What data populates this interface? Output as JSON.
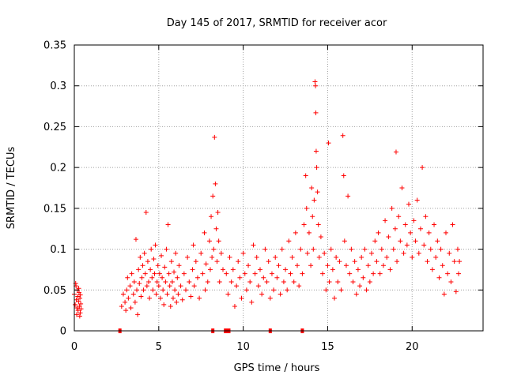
{
  "chart_data": {
    "type": "scatter",
    "title": "Day 145 of 2017, SRMTID for receiver acor",
    "xlabel": "GPS time / hours",
    "ylabel": "SRMTID / TECUs",
    "xlim": [
      0,
      24.2
    ],
    "ylim": [
      0,
      0.35
    ],
    "xticks": [
      0,
      5,
      10,
      15,
      20
    ],
    "xtick_labels": [
      "0",
      "5",
      "10",
      "15",
      "20"
    ],
    "yticks": [
      0,
      0.05,
      0.1,
      0.15,
      0.2,
      0.25,
      0.3,
      0.35
    ],
    "ytick_labels": [
      "0",
      "0.05",
      "0.1",
      "0.15",
      "0.2",
      "0.25",
      "0.3",
      "0.35"
    ],
    "grid": true,
    "marker": "+",
    "color": "#ff0000",
    "series": [
      {
        "name": "SRMTID",
        "points": [
          [
            0.0,
            0.045
          ],
          [
            0.05,
            0.032
          ],
          [
            0.1,
            0.055
          ],
          [
            0.12,
            0.038
          ],
          [
            0.15,
            0.028
          ],
          [
            0.18,
            0.05
          ],
          [
            0.2,
            0.042
          ],
          [
            0.22,
            0.025
          ],
          [
            0.25,
            0.036
          ],
          [
            0.28,
            0.047
          ],
          [
            0.3,
            0.03
          ],
          [
            0.33,
            0.04
          ],
          [
            0.35,
            0.022
          ],
          [
            0.38,
            0.033
          ],
          [
            0.4,
            0.027
          ],
          [
            0.08,
            0.058
          ],
          [
            0.14,
            0.02
          ],
          [
            0.26,
            0.052
          ],
          [
            0.32,
            0.018
          ],
          [
            0.36,
            0.044
          ],
          [
            2.7,
            0.0
          ],
          [
            2.8,
            0.03
          ],
          [
            2.9,
            0.045
          ],
          [
            3.0,
            0.035
          ],
          [
            3.05,
            0.025
          ],
          [
            3.1,
            0.05
          ],
          [
            3.15,
            0.065
          ],
          [
            3.2,
            0.04
          ],
          [
            3.3,
            0.055
          ],
          [
            3.35,
            0.028
          ],
          [
            3.4,
            0.07
          ],
          [
            3.5,
            0.045
          ],
          [
            3.55,
            0.06
          ],
          [
            3.6,
            0.035
          ],
          [
            3.65,
            0.112
          ],
          [
            3.7,
            0.05
          ],
          [
            3.75,
            0.02
          ],
          [
            3.8,
            0.075
          ],
          [
            3.85,
            0.058
          ],
          [
            3.9,
            0.09
          ],
          [
            3.95,
            0.042
          ],
          [
            4.0,
            0.065
          ],
          [
            4.05,
            0.08
          ],
          [
            4.1,
            0.05
          ],
          [
            4.15,
            0.095
          ],
          [
            4.2,
            0.07
          ],
          [
            4.25,
            0.145
          ],
          [
            4.3,
            0.055
          ],
          [
            4.35,
            0.085
          ],
          [
            4.4,
            0.06
          ],
          [
            4.45,
            0.04
          ],
          [
            4.5,
            0.075
          ],
          [
            4.55,
            0.1
          ],
          [
            4.6,
            0.065
          ],
          [
            4.65,
            0.05
          ],
          [
            4.7,
            0.088
          ],
          [
            4.75,
            0.07
          ],
          [
            4.8,
            0.105
          ],
          [
            4.85,
            0.045
          ],
          [
            4.9,
            0.06
          ],
          [
            4.95,
            0.08
          ],
          [
            5.0,
            0.055
          ],
          [
            5.05,
            0.07
          ],
          [
            5.1,
            0.04
          ],
          [
            5.15,
            0.092
          ],
          [
            5.2,
            0.065
          ],
          [
            5.25,
            0.05
          ],
          [
            5.3,
            0.032
          ],
          [
            5.35,
            0.078
          ],
          [
            5.4,
            0.06
          ],
          [
            5.45,
            0.1
          ],
          [
            5.5,
            0.045
          ],
          [
            5.55,
            0.13
          ],
          [
            5.6,
            0.07
          ],
          [
            5.65,
            0.055
          ],
          [
            5.7,
            0.03
          ],
          [
            5.75,
            0.085
          ],
          [
            5.8,
            0.06
          ],
          [
            5.85,
            0.04
          ],
          [
            5.9,
            0.072
          ],
          [
            5.95,
            0.05
          ],
          [
            6.0,
            0.095
          ],
          [
            6.05,
            0.035
          ],
          [
            6.1,
            0.065
          ],
          [
            6.15,
            0.045
          ],
          [
            6.2,
            0.08
          ],
          [
            6.3,
            0.055
          ],
          [
            6.4,
            0.038
          ],
          [
            6.5,
            0.07
          ],
          [
            6.6,
            0.05
          ],
          [
            6.7,
            0.09
          ],
          [
            6.8,
            0.06
          ],
          [
            6.9,
            0.042
          ],
          [
            7.0,
            0.075
          ],
          [
            7.05,
            0.105
          ],
          [
            7.1,
            0.055
          ],
          [
            7.2,
            0.085
          ],
          [
            7.3,
            0.065
          ],
          [
            7.4,
            0.04
          ],
          [
            7.5,
            0.095
          ],
          [
            7.6,
            0.07
          ],
          [
            7.7,
            0.12
          ],
          [
            7.75,
            0.05
          ],
          [
            7.8,
            0.082
          ],
          [
            7.9,
            0.06
          ],
          [
            8.0,
            0.11
          ],
          [
            8.05,
            0.075
          ],
          [
            8.1,
            0.14
          ],
          [
            8.15,
            0.09
          ],
          [
            8.2,
            0.165
          ],
          [
            8.25,
            0.1
          ],
          [
            8.3,
            0.237
          ],
          [
            8.35,
            0.18
          ],
          [
            8.4,
            0.125
          ],
          [
            8.45,
            0.085
          ],
          [
            8.5,
            0.145
          ],
          [
            8.55,
            0.11
          ],
          [
            8.6,
            0.06
          ],
          [
            8.7,
            0.095
          ],
          [
            8.8,
            0.075
          ],
          [
            8.95,
            0.0
          ],
          [
            9.05,
            0.0
          ],
          [
            9.15,
            0.0
          ],
          [
            9.0,
            0.07
          ],
          [
            9.1,
            0.045
          ],
          [
            9.2,
            0.09
          ],
          [
            9.3,
            0.06
          ],
          [
            9.4,
            0.075
          ],
          [
            9.5,
            0.03
          ],
          [
            9.6,
            0.055
          ],
          [
            9.7,
            0.085
          ],
          [
            9.8,
            0.065
          ],
          [
            9.9,
            0.04
          ],
          [
            10.0,
            0.095
          ],
          [
            10.1,
            0.07
          ],
          [
            10.2,
            0.05
          ],
          [
            10.3,
            0.08
          ],
          [
            10.4,
            0.06
          ],
          [
            10.5,
            0.035
          ],
          [
            10.6,
            0.105
          ],
          [
            10.7,
            0.07
          ],
          [
            10.8,
            0.09
          ],
          [
            10.9,
            0.055
          ],
          [
            11.0,
            0.075
          ],
          [
            11.1,
            0.045
          ],
          [
            11.2,
            0.065
          ],
          [
            11.3,
            0.1
          ],
          [
            11.4,
            0.06
          ],
          [
            11.5,
            0.085
          ],
          [
            11.6,
            0.04
          ],
          [
            11.7,
            0.07
          ],
          [
            11.8,
            0.05
          ],
          [
            11.9,
            0.09
          ],
          [
            12.0,
            0.065
          ],
          [
            12.1,
            0.08
          ],
          [
            12.2,
            0.045
          ],
          [
            12.3,
            0.1
          ],
          [
            12.4,
            0.06
          ],
          [
            12.5,
            0.075
          ],
          [
            12.6,
            0.05
          ],
          [
            12.7,
            0.11
          ],
          [
            12.8,
            0.07
          ],
          [
            12.9,
            0.09
          ],
          [
            13.0,
            0.06
          ],
          [
            13.1,
            0.12
          ],
          [
            13.2,
            0.08
          ],
          [
            13.3,
            0.055
          ],
          [
            13.4,
            0.1
          ],
          [
            13.5,
            0.07
          ],
          [
            13.6,
            0.13
          ],
          [
            13.7,
            0.19
          ],
          [
            13.75,
            0.15
          ],
          [
            13.8,
            0.095
          ],
          [
            13.9,
            0.12
          ],
          [
            14.0,
            0.08
          ],
          [
            14.05,
            0.175
          ],
          [
            14.1,
            0.14
          ],
          [
            14.15,
            0.1
          ],
          [
            14.2,
            0.16
          ],
          [
            14.25,
            0.305
          ],
          [
            14.28,
            0.3
          ],
          [
            14.3,
            0.267
          ],
          [
            14.32,
            0.22
          ],
          [
            14.35,
            0.2
          ],
          [
            14.4,
            0.17
          ],
          [
            14.45,
            0.13
          ],
          [
            14.5,
            0.09
          ],
          [
            14.6,
            0.115
          ],
          [
            14.7,
            0.07
          ],
          [
            14.8,
            0.095
          ],
          [
            14.9,
            0.05
          ],
          [
            15.0,
            0.08
          ],
          [
            15.05,
            0.23
          ],
          [
            15.1,
            0.06
          ],
          [
            15.2,
            0.1
          ],
          [
            15.3,
            0.075
          ],
          [
            15.4,
            0.04
          ],
          [
            15.5,
            0.09
          ],
          [
            15.6,
            0.06
          ],
          [
            15.7,
            0.085
          ],
          [
            15.8,
            0.05
          ],
          [
            15.9,
            0.239
          ],
          [
            15.95,
            0.19
          ],
          [
            16.0,
            0.11
          ],
          [
            16.1,
            0.08
          ],
          [
            16.2,
            0.165
          ],
          [
            16.3,
            0.07
          ],
          [
            16.4,
            0.1
          ],
          [
            16.5,
            0.06
          ],
          [
            16.6,
            0.085
          ],
          [
            16.7,
            0.045
          ],
          [
            16.8,
            0.075
          ],
          [
            16.9,
            0.055
          ],
          [
            17.0,
            0.09
          ],
          [
            17.1,
            0.065
          ],
          [
            17.2,
            0.1
          ],
          [
            17.3,
            0.05
          ],
          [
            17.4,
            0.08
          ],
          [
            17.5,
            0.06
          ],
          [
            17.6,
            0.095
          ],
          [
            17.7,
            0.07
          ],
          [
            17.8,
            0.11
          ],
          [
            17.9,
            0.085
          ],
          [
            18.0,
            0.12
          ],
          [
            18.1,
            0.07
          ],
          [
            18.2,
            0.1
          ],
          [
            18.3,
            0.08
          ],
          [
            18.4,
            0.135
          ],
          [
            18.5,
            0.09
          ],
          [
            18.6,
            0.115
          ],
          [
            18.7,
            0.075
          ],
          [
            18.8,
            0.15
          ],
          [
            18.9,
            0.1
          ],
          [
            19.0,
            0.125
          ],
          [
            19.05,
            0.219
          ],
          [
            19.1,
            0.085
          ],
          [
            19.2,
            0.14
          ],
          [
            19.3,
            0.11
          ],
          [
            19.4,
            0.175
          ],
          [
            19.5,
            0.095
          ],
          [
            19.6,
            0.13
          ],
          [
            19.7,
            0.105
          ],
          [
            19.8,
            0.155
          ],
          [
            19.9,
            0.12
          ],
          [
            20.0,
            0.09
          ],
          [
            20.1,
            0.135
          ],
          [
            20.2,
            0.11
          ],
          [
            20.3,
            0.16
          ],
          [
            20.4,
            0.095
          ],
          [
            20.5,
            0.125
          ],
          [
            20.6,
            0.2
          ],
          [
            20.7,
            0.105
          ],
          [
            20.8,
            0.14
          ],
          [
            20.9,
            0.085
          ],
          [
            21.0,
            0.12
          ],
          [
            21.1,
            0.1
          ],
          [
            21.2,
            0.075
          ],
          [
            21.3,
            0.13
          ],
          [
            21.4,
            0.09
          ],
          [
            21.5,
            0.11
          ],
          [
            21.6,
            0.065
          ],
          [
            21.7,
            0.1
          ],
          [
            21.8,
            0.08
          ],
          [
            21.9,
            0.045
          ],
          [
            22.0,
            0.12
          ],
          [
            22.1,
            0.07
          ],
          [
            22.2,
            0.095
          ],
          [
            22.3,
            0.06
          ],
          [
            22.4,
            0.13
          ],
          [
            22.5,
            0.085
          ],
          [
            22.6,
            0.048
          ],
          [
            22.7,
            0.1
          ],
          [
            22.75,
            0.07
          ],
          [
            22.8,
            0.085
          ],
          [
            11.6,
            0.0
          ],
          [
            13.5,
            0.0
          ],
          [
            8.2,
            0.0
          ]
        ]
      }
    ]
  }
}
